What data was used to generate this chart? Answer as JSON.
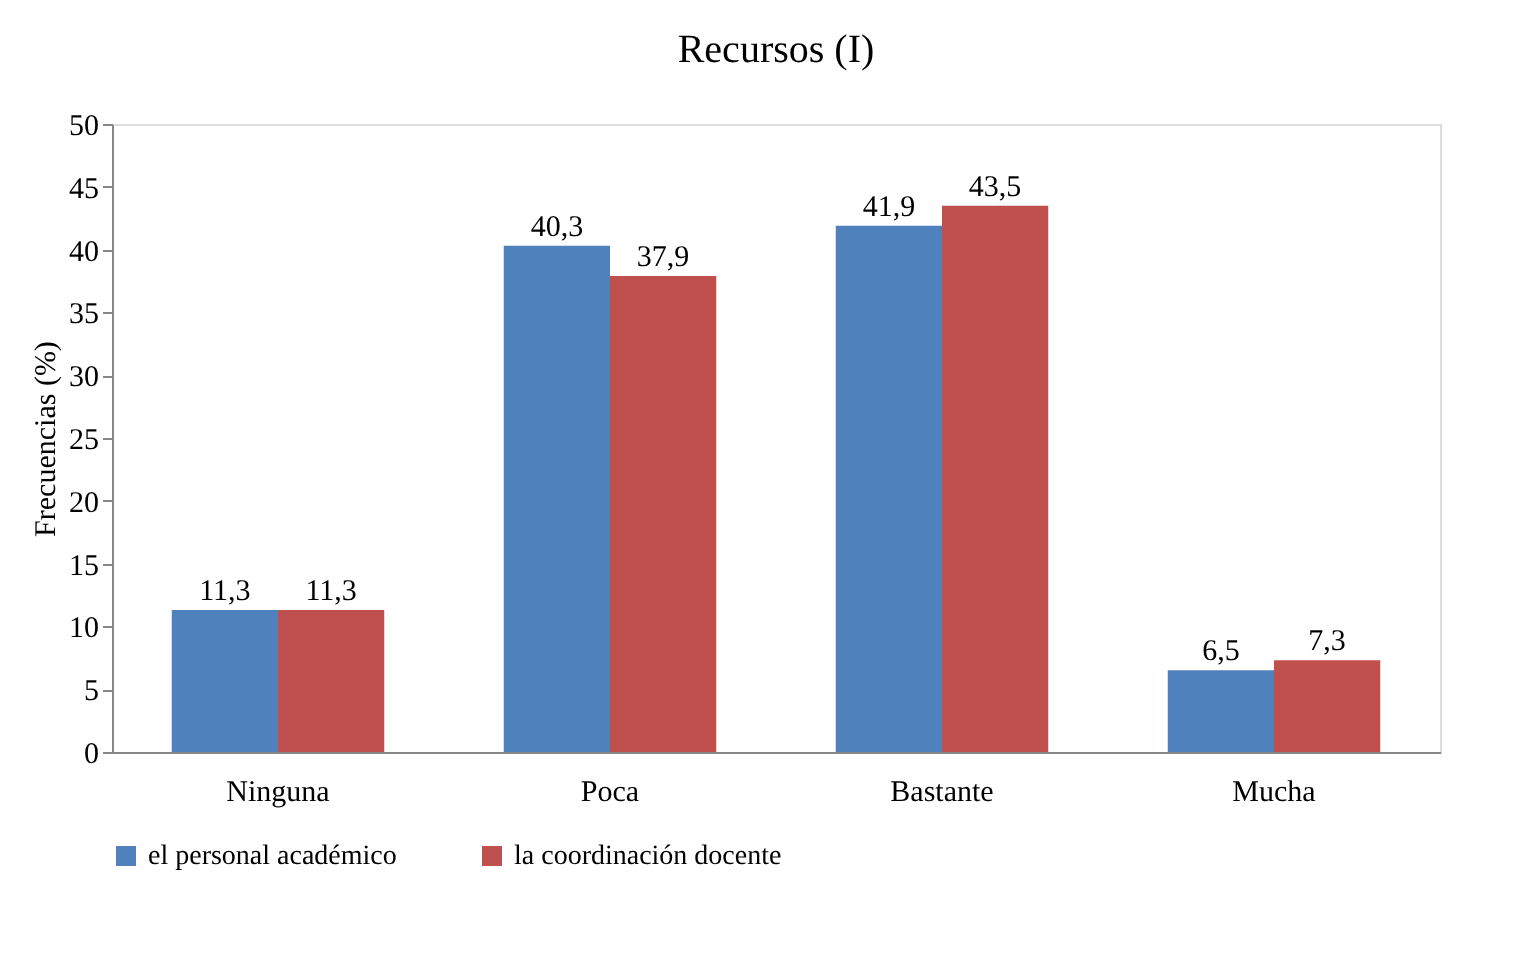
{
  "chart_data": {
    "type": "bar",
    "title": "Recursos (I)",
    "ylabel": "Frecuencias (%)",
    "categories": [
      "Ninguna",
      "Poca",
      "Bastante",
      "Mucha"
    ],
    "series": [
      {
        "name": "el personal académico",
        "color": "#4f81bd",
        "values": [
          11.3,
          40.3,
          41.9,
          6.5
        ],
        "value_labels": [
          "11,3",
          "40,3",
          "41,9",
          "6,5"
        ]
      },
      {
        "name": "la coordinación docente",
        "color": "#c0504d",
        "values": [
          11.3,
          37.9,
          43.5,
          7.3
        ],
        "value_labels": [
          "11,3",
          "37,9",
          "43,5",
          "7,3"
        ]
      }
    ],
    "ylim": [
      0,
      50
    ],
    "yticks": [
      0,
      5,
      10,
      15,
      20,
      25,
      30,
      35,
      40,
      45,
      50
    ],
    "grid": false,
    "legend": "bottom"
  }
}
